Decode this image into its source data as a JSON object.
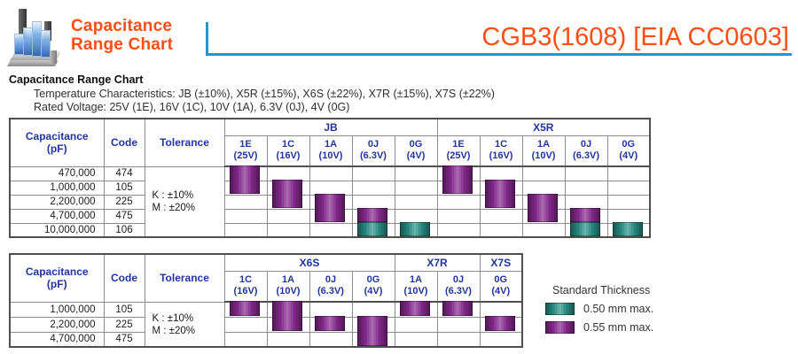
{
  "brand": {
    "logo_line1": "Capacitance",
    "logo_line2": "Range Chart",
    "product_title": "CGB3(1608) [EIA CC0603]"
  },
  "intro": {
    "heading": "Capacitance Range Chart",
    "temperature_line": "Temperature Characteristics: JB (±10%), X5R (±15%), X6S (±22%), X7R (±15%), X7S (±22%)",
    "voltage_line": "Rated Voltage: 25V (1E), 16V (1C), 10V (1A), 6.3V (0J), 4V (0G)"
  },
  "colors": {
    "orange": "#FF4E11",
    "blue_rule": "#1E96D7",
    "header_navy": "#22349E",
    "purple": "#8E2D96",
    "teal": "#2A968C"
  },
  "legend": {
    "title": "Standard Thickness",
    "items": [
      {
        "color": "teal",
        "label": "0.50 mm max."
      },
      {
        "color": "purple",
        "label": "0.55 mm max."
      }
    ]
  },
  "tables": [
    {
      "headers": {
        "capacitance": [
          "Capacitance",
          "(pF)"
        ],
        "code": "Code",
        "tolerance": "Tolerance"
      },
      "tolerance_lines": [
        "K : ±10%",
        "M : ±20%"
      ],
      "groups": [
        {
          "name": "JB",
          "columns": [
            [
              "1E",
              "(25V)"
            ],
            [
              "1C",
              "(16V)"
            ],
            [
              "1A",
              "(10V)"
            ],
            [
              "0J",
              "(6.3V)"
            ],
            [
              "0G",
              "(4V)"
            ]
          ]
        },
        {
          "name": "X5R",
          "columns": [
            [
              "1E",
              "(25V)"
            ],
            [
              "1C",
              "(16V)"
            ],
            [
              "1A",
              "(10V)"
            ],
            [
              "0J",
              "(6.3V)"
            ],
            [
              "0G",
              "(4V)"
            ]
          ]
        }
      ],
      "rows": [
        {
          "capacitance": "470,000",
          "code": "474"
        },
        {
          "capacitance": "1,000,000",
          "code": "105"
        },
        {
          "capacitance": "2,200,000",
          "code": "225"
        },
        {
          "capacitance": "4,700,000",
          "code": "475"
        },
        {
          "capacitance": "10,000,000",
          "code": "106"
        }
      ],
      "bars": [
        {
          "col": 0,
          "row": 1,
          "span": 2,
          "color": "purple"
        },
        {
          "col": 1,
          "row": 2,
          "span": 2,
          "color": "purple"
        },
        {
          "col": 2,
          "row": 3,
          "span": 2,
          "color": "purple"
        },
        {
          "col": 3,
          "row": 4,
          "span": 1,
          "color": "purple"
        },
        {
          "col": 3,
          "row": 5,
          "span": 1,
          "color": "teal"
        },
        {
          "col": 4,
          "row": 5,
          "span": 1,
          "color": "teal"
        },
        {
          "col": 5,
          "row": 1,
          "span": 2,
          "color": "purple"
        },
        {
          "col": 6,
          "row": 2,
          "span": 2,
          "color": "purple"
        },
        {
          "col": 7,
          "row": 3,
          "span": 2,
          "color": "purple"
        },
        {
          "col": 8,
          "row": 4,
          "span": 1,
          "color": "purple"
        },
        {
          "col": 8,
          "row": 5,
          "span": 1,
          "color": "teal"
        },
        {
          "col": 9,
          "row": 5,
          "span": 1,
          "color": "teal"
        }
      ]
    },
    {
      "headers": {
        "capacitance": [
          "Capacitance",
          "(pF)"
        ],
        "code": "Code",
        "tolerance": "Tolerance"
      },
      "tolerance_lines": [
        "K : ±10%",
        "M : ±20%"
      ],
      "groups": [
        {
          "name": "X6S",
          "columns": [
            [
              "1C",
              "(16V)"
            ],
            [
              "1A",
              "(10V)"
            ],
            [
              "0J",
              "(6.3V)"
            ],
            [
              "0G",
              "(4V)"
            ]
          ]
        },
        {
          "name": "X7R",
          "columns": [
            [
              "1A",
              "(10V)"
            ],
            [
              "0J",
              "(6.3V)"
            ]
          ]
        },
        {
          "name": "X7S",
          "columns": [
            [
              "0G",
              "(4V)"
            ]
          ]
        }
      ],
      "rows": [
        {
          "capacitance": "1,000,000",
          "code": "105"
        },
        {
          "capacitance": "2,200,000",
          "code": "225"
        },
        {
          "capacitance": "4,700,000",
          "code": "475"
        }
      ],
      "bars": [
        {
          "col": 0,
          "row": 1,
          "span": 1,
          "color": "purple"
        },
        {
          "col": 1,
          "row": 1,
          "span": 2,
          "color": "purple"
        },
        {
          "col": 2,
          "row": 2,
          "span": 1,
          "color": "purple"
        },
        {
          "col": 3,
          "row": 2,
          "span": 2,
          "color": "purple"
        },
        {
          "col": 4,
          "row": 1,
          "span": 1,
          "color": "purple"
        },
        {
          "col": 5,
          "row": 1,
          "span": 1,
          "color": "purple"
        },
        {
          "col": 6,
          "row": 2,
          "span": 1,
          "color": "purple"
        }
      ]
    }
  ]
}
